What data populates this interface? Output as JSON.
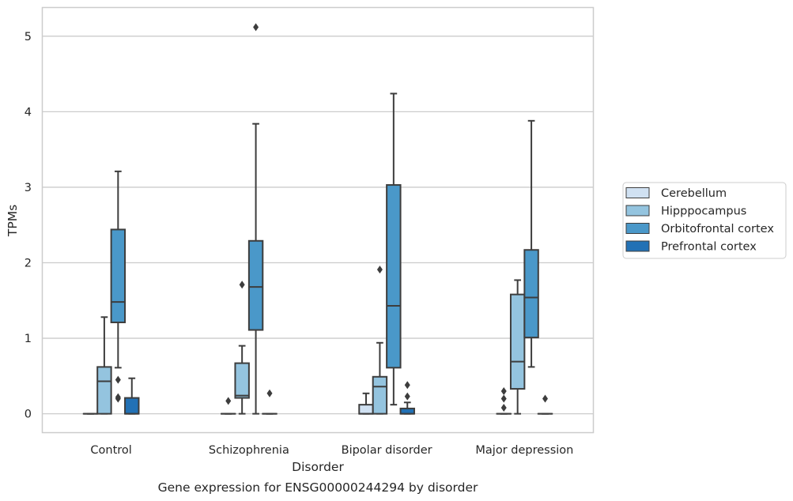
{
  "chart_data": {
    "type": "box",
    "xlabel": "Disorder",
    "ylabel": "TPMs",
    "caption": "Gene expression for ENSG00000244294 by disorder",
    "ylim": [
      -0.25,
      5.38
    ],
    "yticks": [
      0,
      1,
      2,
      3,
      4,
      5
    ],
    "grid": "horizontal",
    "legend_position": "right",
    "categories": [
      "Control",
      "Schizophrenia",
      "Bipolar disorder",
      "Major depression"
    ],
    "series": [
      {
        "name": "Cerebellum",
        "color": "#d0e1f2",
        "boxes": [
          {
            "min": 0,
            "q1": 0,
            "median": 0,
            "q3": 0,
            "max": 0,
            "outliers": []
          },
          {
            "min": 0,
            "q1": 0,
            "median": 0,
            "q3": 0,
            "max": 0,
            "outliers": [
              0.17
            ]
          },
          {
            "min": 0,
            "q1": 0,
            "median": 0,
            "q3": 0.12,
            "max": 0.27,
            "outliers": []
          },
          {
            "min": 0,
            "q1": 0,
            "median": 0,
            "q3": 0,
            "max": 0,
            "outliers": [
              0.08,
              0.2,
              0.3
            ]
          }
        ]
      },
      {
        "name": "Hipppocampus",
        "color": "#94c4df",
        "boxes": [
          {
            "min": 0,
            "q1": 0,
            "median": 0.43,
            "q3": 0.62,
            "max": 1.28,
            "outliers": []
          },
          {
            "min": 0,
            "q1": 0.21,
            "median": 0.24,
            "q3": 0.67,
            "max": 0.9,
            "outliers": [
              1.71
            ]
          },
          {
            "min": 0,
            "q1": 0,
            "median": 0.36,
            "q3": 0.49,
            "max": 0.94,
            "outliers": [
              1.91
            ]
          },
          {
            "min": 0,
            "q1": 0.33,
            "median": 0.69,
            "q3": 1.58,
            "max": 1.77,
            "outliers": []
          }
        ]
      },
      {
        "name": "Orbitofrontal cortex",
        "color": "#4a98c9",
        "boxes": [
          {
            "min": 0.61,
            "q1": 1.21,
            "median": 1.48,
            "q3": 2.44,
            "max": 3.21,
            "outliers": [
              0.2,
              0.22,
              0.45
            ]
          },
          {
            "min": 0,
            "q1": 1.11,
            "median": 1.68,
            "q3": 2.29,
            "max": 3.84,
            "outliers": [
              5.12
            ]
          },
          {
            "min": 0.12,
            "q1": 0.61,
            "median": 1.43,
            "q3": 3.03,
            "max": 4.24,
            "outliers": []
          },
          {
            "min": 0.62,
            "q1": 1.01,
            "median": 1.54,
            "q3": 2.17,
            "max": 3.88,
            "outliers": []
          }
        ]
      },
      {
        "name": "Prefrontal cortex",
        "color": "#2271b5",
        "boxes": [
          {
            "min": 0,
            "q1": 0,
            "median": 0,
            "q3": 0.21,
            "max": 0.47,
            "outliers": []
          },
          {
            "min": 0,
            "q1": 0,
            "median": 0,
            "q3": 0,
            "max": 0,
            "outliers": [
              0.27
            ]
          },
          {
            "min": 0,
            "q1": 0,
            "median": 0,
            "q3": 0.07,
            "max": 0.15,
            "outliers": [
              0.23,
              0.38
            ]
          },
          {
            "min": 0,
            "q1": 0,
            "median": 0,
            "q3": 0,
            "max": 0,
            "outliers": [
              0.2
            ]
          }
        ]
      }
    ]
  }
}
